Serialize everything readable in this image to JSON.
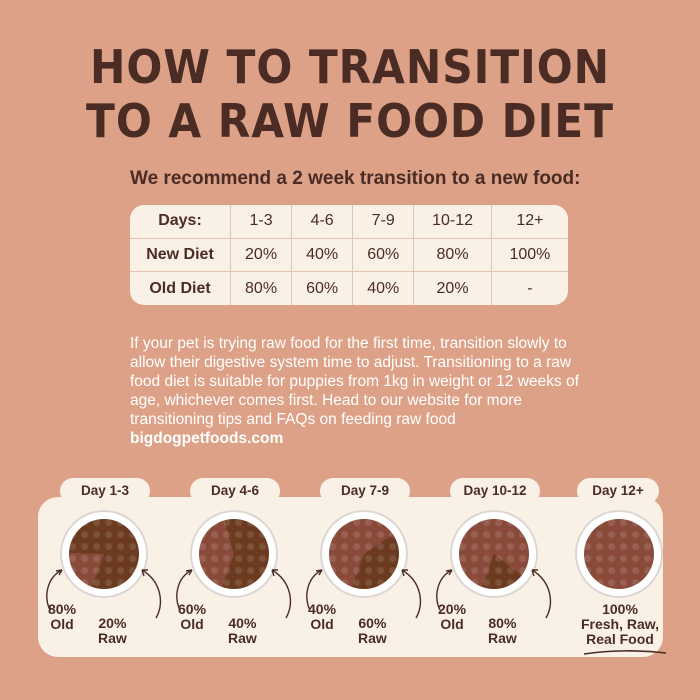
{
  "title": {
    "line1": "HOW TO TRANSITION",
    "line2": "TO A RAW FOOD DIET"
  },
  "subtitle": "We recommend a 2 week transition to a new food:",
  "table": {
    "header": [
      "Days:",
      "1-3",
      "4-6",
      "7-9",
      "10-12",
      "12+"
    ],
    "rows": [
      [
        "New Diet",
        "20%",
        "40%",
        "60%",
        "80%",
        "100%"
      ],
      [
        "Old Diet",
        "80%",
        "60%",
        "40%",
        "20%",
        "-"
      ]
    ]
  },
  "paragraph": {
    "text": "If your pet is trying raw food for the first time, transition slowly to allow their digestive system time to adjust. Transitioning to a raw food diet is suitable for puppies from 1kg in weight or 12 weeks of age, whichever comes first. Head to our website for more transitioning tips and FAQs on feeding raw food",
    "website": "bigdogpetfoods.com"
  },
  "stages": [
    {
      "day": "Day 1-3",
      "old_pct": "80%",
      "old_label": "Old",
      "raw_pct": "20%",
      "raw_label": "Raw",
      "raw_fraction": 0.2
    },
    {
      "day": "Day 4-6",
      "old_pct": "60%",
      "old_label": "Old",
      "raw_pct": "40%",
      "raw_label": "Raw",
      "raw_fraction": 0.4
    },
    {
      "day": "Day 7-9",
      "old_pct": "40%",
      "old_label": "Old",
      "raw_pct": "60%",
      "raw_label": "Raw",
      "raw_fraction": 0.6
    },
    {
      "day": "Day 10-12",
      "old_pct": "20%",
      "old_label": "Old",
      "raw_pct": "80%",
      "raw_label": "Raw",
      "raw_fraction": 0.8
    }
  ],
  "final_stage": {
    "day": "Day 12+",
    "pct": "100%",
    "line1": "Fresh, Raw,",
    "line2": "Real Food",
    "raw_fraction": 1.0
  },
  "colors": {
    "background": "#dca187",
    "text_dark": "#4a2c25",
    "panel": "#faf1e6",
    "kibble": "#6b3a1f",
    "raw_food": "#8a4a3a"
  }
}
